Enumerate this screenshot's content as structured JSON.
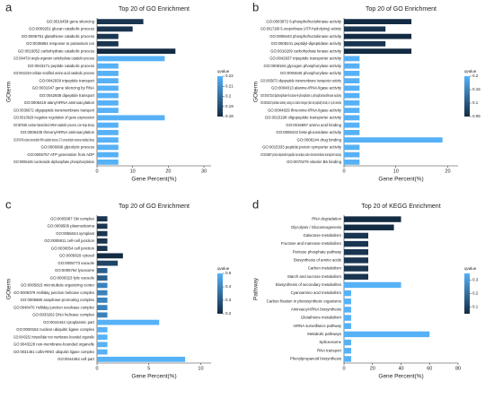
{
  "chart_data": [
    {
      "type": "barh",
      "panel": "a",
      "title": "Top 20 of GO Enrichment",
      "ylabel": "GOterm",
      "xlabel": "Gene Percent(%)",
      "colorbar_title": "qvalue",
      "categories": [
        "GO:0016458 gene silencing",
        "GO:0009251 glucan catabolic process",
        "GO:0006751 glutathione catabolic process",
        "GO:0035864 response to potassium ion",
        "GO:0016052 carbohydrate catabolic process",
        "GO:0044724 single-organism carbohydrate catabolic process",
        "GO:0043171 peptide catabolic process",
        "GO:0042219 cellular modified amino acid catabolic process",
        "GO:0042939 tripeptide transport",
        "GO:0031047 gene silencing by RNA",
        "GO:0042938 dipeptide transport",
        "GO:0006419 alanyl-tRNA aminoacylation",
        "GO:0036672 oligopeptide transmembrane transport",
        "GO:0010629 negative regulation of gene expression",
        "GO:0075481 nuclear-transcribed mRNA catabolic process, non-stop decay",
        "GO:0006435 threonyl-tRNA aminoacylation",
        "GO:0070478 nuclear-transcribed mRNA catabolic process, 3'-5' exonucleolytic nonsense-mediated decay",
        "GO:0006096 glycolytic process",
        "GO:0006757 ATP generation from ADP",
        "GO:0006165 nucleoside diphosphate phosphorylation"
      ],
      "values": [
        13,
        10,
        6,
        6,
        22,
        19,
        6,
        6,
        6,
        6,
        6,
        6,
        6,
        19,
        6,
        6,
        6,
        6,
        6,
        6
      ],
      "colors": [
        "#1a3550",
        "#1a3550",
        "#1a3550",
        "#1a3550",
        "#132b43",
        "#56b1f7",
        "#56b1f7",
        "#56b1f7",
        "#56b1f7",
        "#56b1f7",
        "#56b1f7",
        "#56b1f7",
        "#56b1f7",
        "#56b1f7",
        "#56b1f7",
        "#56b1f7",
        "#56b1f7",
        "#56b1f7",
        "#56b1f7",
        "#56b1f7"
      ],
      "xlim": [
        0,
        32
      ],
      "xticks": [
        0,
        10,
        20,
        30
      ],
      "clim": [
        0.18,
        0.22
      ],
      "cticks": [
        0.22,
        0.21,
        0.2,
        0.19,
        0.18
      ]
    },
    {
      "type": "barh",
      "panel": "b",
      "title": "Top 20 of GO Enrichment",
      "ylabel": "GOterm",
      "xlabel": "Gene Percent(%)",
      "colorbar_title": "qvalue",
      "categories": [
        "GO:0003872 6-phosphofructokinase activity",
        "GO:0017168 5-oxoprolinase (ATP-hydrolyzing) activity",
        "GO:0008443 phosphofructokinase activity",
        "GO:0008241 peptidyl-dipeptidase activity",
        "GO:0016209 carbohydrate kinase activity",
        "GO:0042937 tripeptide transporter activity",
        "GO:0008184 glycogen phosphorylase activity",
        "GO:0004645 phosphorylase activity",
        "GO:0035673 oligopeptide transmembrane transporter activity",
        "GO:0004813 alanine-tRNA ligase activity",
        "GO:0047334 diphosphate-fructose-6-phosphate 1-phosphotransferase activity",
        "GO:0016812 hydrolase activity, acting on carbon-nitrogen (but not peptide) bonds, in cyclic amides",
        "GO:0004829 threonine-tRNA ligase activity",
        "GO:0015198 oligopeptide transporter activity",
        "GO:0016597 amino acid binding",
        "GO:0008422 beta-glucosidase activity",
        "GO:0008144 drug binding",
        "GO:0015333 peptide:proton symporter activity",
        "GO:0022897 proton-dependent peptide secondary active transmembrane transporter activity",
        "GO:0070279 vitamin B6 binding"
      ],
      "values": [
        13,
        8,
        13,
        8,
        13,
        3,
        3,
        3,
        3,
        3,
        3,
        3,
        3,
        3,
        3,
        3,
        19,
        3,
        3,
        3
      ],
      "colors": [
        "#132b43",
        "#1a3550",
        "#132b43",
        "#1a3550",
        "#132b43",
        "#56b1f7",
        "#56b1f7",
        "#56b1f7",
        "#56b1f7",
        "#56b1f7",
        "#56b1f7",
        "#56b1f7",
        "#56b1f7",
        "#56b1f7",
        "#56b1f7",
        "#56b1f7",
        "#56b1f7",
        "#56b1f7",
        "#56b1f7",
        "#56b1f7"
      ],
      "xlim": [
        0,
        22
      ],
      "xticks": [
        0,
        10,
        20
      ],
      "clim": [
        0.05,
        0.2
      ],
      "cticks": [
        0.2,
        0.15,
        0.1,
        0.05
      ]
    },
    {
      "type": "barh",
      "panel": "c",
      "title": "Top 20 of GO Enrichment",
      "ylabel": "GOterm",
      "xlabel": "Gene Percent(%)",
      "colorbar_title": "qvalue",
      "categories": [
        "GO:0005087 Ski complex",
        "GO:0009506 plasmodesma",
        "GO:0055044 symplast",
        "GO:0005911 cell-cell junction",
        "GO:0030054 cell junction",
        "GO:0005829 cytosol",
        "GO:0005773 vacuole",
        "GO:0005764 lysosome",
        "GO:0000323 lytic vacuole",
        "GO:0005815 microtubule organizing center",
        "GO:0009379 Holliday junction helicase complex",
        "GO:0005680 anaphase-promoting complex",
        "GO:0048476 Holliday junction resolvase complex",
        "GO:0033202 DNA helicase complex",
        "GO:0044444 cytoplasmic part",
        "GO:0000152 nuclear ubiquitin ligase complex",
        "GO:0043232 intracellular non-membrane-bounded organelle",
        "GO:0043228 non-membrane-bounded organelle",
        "GO:0031461 cullin-RING ubiquitin ligase complex",
        "GO:0044464 cell part"
      ],
      "values": [
        1,
        1,
        1,
        1,
        1,
        2.5,
        2,
        1,
        1,
        1,
        1,
        1,
        1,
        1,
        6,
        1,
        1,
        1,
        1,
        8.5
      ],
      "colors": [
        "#1a3550",
        "#1a3550",
        "#1a3550",
        "#1a3550",
        "#1a3550",
        "#132b43",
        "#1f4466",
        "#2a5f8c",
        "#2a5f8c",
        "#3a82bd",
        "#3a82bd",
        "#3a82bd",
        "#3a82bd",
        "#3a82bd",
        "#56b1f7",
        "#56b1f7",
        "#56b1f7",
        "#56b1f7",
        "#56b1f7",
        "#56b1f7"
      ],
      "xlim": [
        0,
        11
      ],
      "xticks": [
        0,
        5,
        10
      ],
      "clim": [
        0.2,
        0.5
      ],
      "cticks": [
        0.5,
        0.4,
        0.3,
        0.2
      ]
    },
    {
      "type": "barh",
      "panel": "d",
      "title": "Top 20 of KEGG Enrichment",
      "ylabel": "Pathway",
      "xlabel": "Gene Percent(%)",
      "colorbar_title": "qvalue",
      "categories": [
        "RNA degradation",
        "Glycolysis / Gluconeogenesis",
        "Galactose metabolism",
        "Fructose and mannose metabolism",
        "Pentose phosphate pathway",
        "Biosynthesis of amino acids",
        "Carbon metabolism",
        "Starch and sucrose metabolism",
        "Biosynthesis of secondary metabolites",
        "Cyanoamino acid metabolism",
        "Carbon fixation in photosynthetic organisms",
        "Aminoacyl-tRNA biosynthesis",
        "Glutathione metabolism",
        "mRNA surveillance pathway",
        "Metabolic pathways",
        "Spliceosome",
        "RNA transport",
        "Phenylpropanoid biosynthesis"
      ],
      "values": [
        40,
        35,
        17,
        17,
        17,
        17,
        17,
        17,
        40,
        5,
        5,
        5,
        5,
        5,
        60,
        5,
        5,
        5
      ],
      "colors": [
        "#132b43",
        "#132b43",
        "#1a3550",
        "#1a3550",
        "#1a3550",
        "#1a3550",
        "#1a3550",
        "#1a3550",
        "#56b1f7",
        "#56b1f7",
        "#56b1f7",
        "#56b1f7",
        "#56b1f7",
        "#56b1f7",
        "#56b1f7",
        "#56b1f7",
        "#56b1f7",
        "#56b1f7"
      ],
      "xlim": [
        0,
        80
      ],
      "xticks": [
        0,
        20,
        40,
        60,
        80
      ],
      "clim": [
        0.05,
        0.35
      ],
      "cticks": [
        0.3,
        0.2,
        0.1
      ]
    }
  ]
}
